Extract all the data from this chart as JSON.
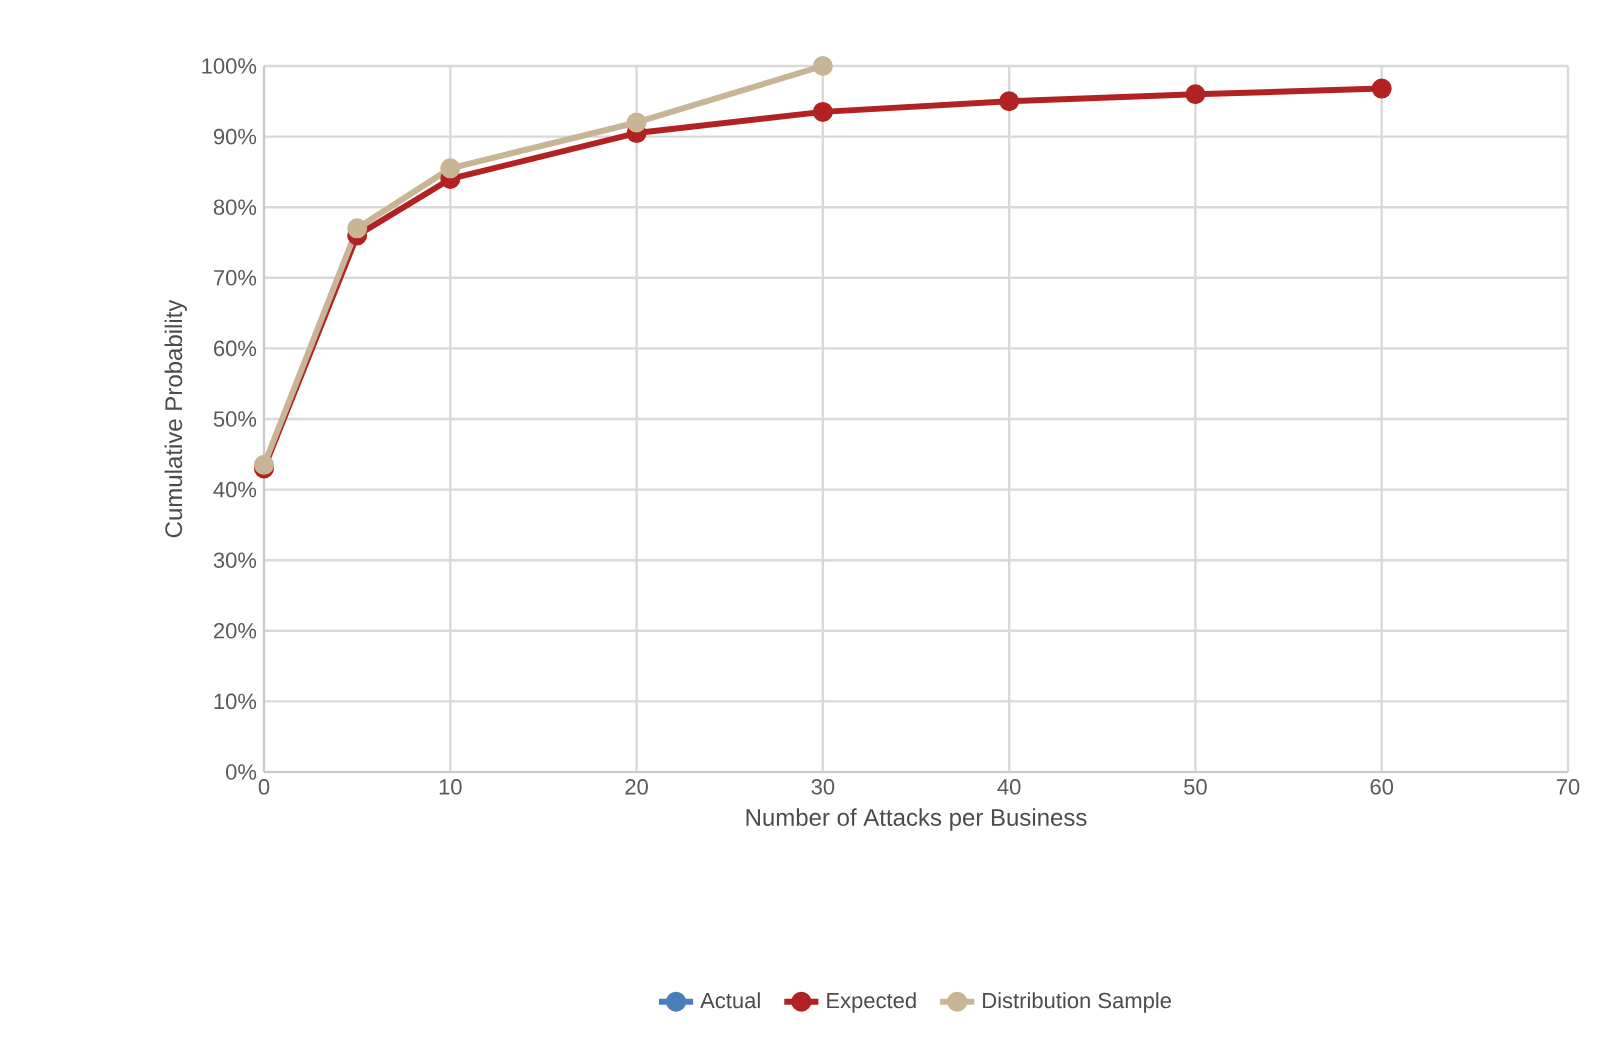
{
  "chart_data": {
    "type": "line",
    "xlabel": "Number of Attacks per Business",
    "ylabel": "Cumulative Probability",
    "x": [
      0,
      5,
      10,
      20,
      30,
      40,
      50,
      60
    ],
    "series": [
      {
        "name": "Actual",
        "color": "#4a7ebb",
        "values": [
          null,
          null,
          null,
          null,
          null,
          null,
          null,
          null
        ]
      },
      {
        "name": "Expected",
        "color": "#b22222",
        "values": [
          43,
          76,
          84,
          90.5,
          93.5,
          95,
          96,
          96.8
        ]
      },
      {
        "name": "Distribution Sample",
        "color": "#c8b596",
        "values": [
          43.5,
          77,
          85.5,
          92,
          100,
          null,
          null,
          null
        ]
      }
    ],
    "xlim": [
      0,
      70
    ],
    "xticks": [
      0,
      10,
      20,
      30,
      40,
      50,
      60,
      70
    ],
    "ylim": [
      0,
      100
    ],
    "yticks": [
      {
        "value": 0,
        "label": "0%"
      },
      {
        "value": 10,
        "label": "10%"
      },
      {
        "value": 20,
        "label": "20%"
      },
      {
        "value": 30,
        "label": "30%"
      },
      {
        "value": 40,
        "label": "40%"
      },
      {
        "value": 50,
        "label": "50%"
      },
      {
        "value": 60,
        "label": "60%"
      },
      {
        "value": 70,
        "label": "70%"
      },
      {
        "value": 80,
        "label": "80%"
      },
      {
        "value": 90,
        "label": "90%"
      },
      {
        "value": 100,
        "label": "100%"
      }
    ],
    "grid": true,
    "legend": "bottom",
    "marker": "circle",
    "line_style": "solid"
  }
}
